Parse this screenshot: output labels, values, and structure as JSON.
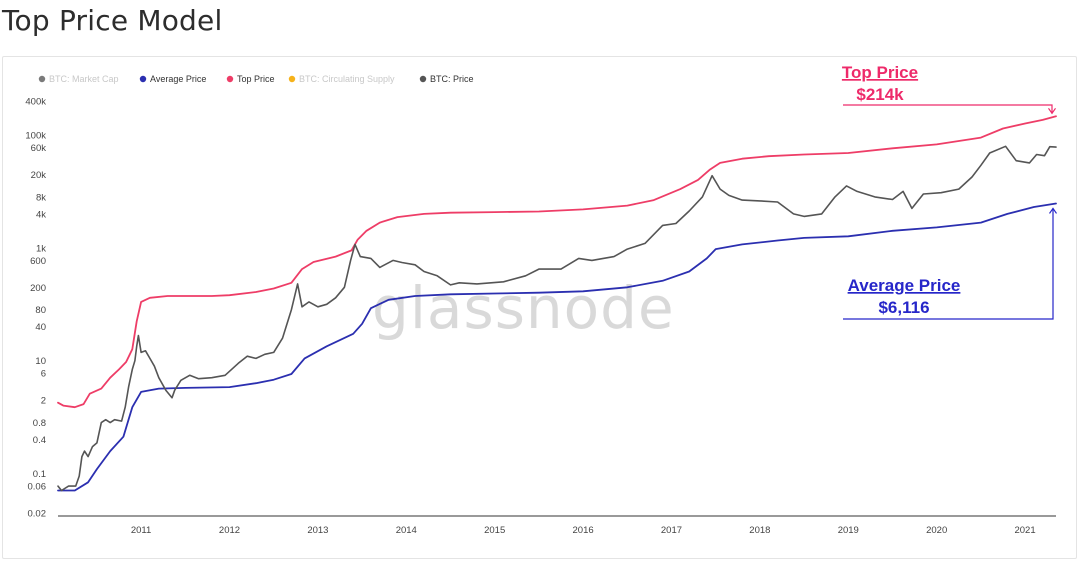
{
  "page": {
    "title": "Top Price Model"
  },
  "chart_data": {
    "type": "line",
    "title": "Top Price Model",
    "xlabel": "",
    "ylabel": "",
    "y_scale": "log",
    "ylim": [
      0.02,
      400000
    ],
    "xlim": [
      2010.56,
      2021.85
    ],
    "grid": false,
    "legend_position": "top-left",
    "watermark": "glassnode",
    "y_ticks": [
      {
        "value": 400000,
        "label": "400k"
      },
      {
        "value": 100000,
        "label": "100k"
      },
      {
        "value": 60000,
        "label": "60k"
      },
      {
        "value": 20000,
        "label": "20k"
      },
      {
        "value": 8000,
        "label": "8k"
      },
      {
        "value": 4000,
        "label": "4k"
      },
      {
        "value": 1000,
        "label": "1k"
      },
      {
        "value": 600,
        "label": "600"
      },
      {
        "value": 200,
        "label": "200"
      },
      {
        "value": 80,
        "label": "80"
      },
      {
        "value": 40,
        "label": "40"
      },
      {
        "value": 10,
        "label": "10"
      },
      {
        "value": 6,
        "label": "6"
      },
      {
        "value": 2,
        "label": "2"
      },
      {
        "value": 0.8,
        "label": "0.8"
      },
      {
        "value": 0.4,
        "label": "0.4"
      },
      {
        "value": 0.1,
        "label": "0.1"
      },
      {
        "value": 0.06,
        "label": "0.06"
      },
      {
        "value": 0.02,
        "label": "0.02"
      }
    ],
    "x_ticks": [
      {
        "value": 2011,
        "label": "2011"
      },
      {
        "value": 2012,
        "label": "2012"
      },
      {
        "value": 2013,
        "label": "2013"
      },
      {
        "value": 2014,
        "label": "2014"
      },
      {
        "value": 2015,
        "label": "2015"
      },
      {
        "value": 2016,
        "label": "2016"
      },
      {
        "value": 2017,
        "label": "2017"
      },
      {
        "value": 2018,
        "label": "2018"
      },
      {
        "value": 2019,
        "label": "2019"
      },
      {
        "value": 2020,
        "label": "2020"
      },
      {
        "value": 2021,
        "label": "2021"
      }
    ],
    "legend": [
      {
        "name": "BTC: Market Cap",
        "color": "#7a7a7a",
        "text_color": "#c8c8c8",
        "active": false
      },
      {
        "name": "Average Price",
        "color": "#2b2fb0",
        "text_color": "#333333",
        "active": true
      },
      {
        "name": "Top Price",
        "color": "#ee3d67",
        "text_color": "#333333",
        "active": true
      },
      {
        "name": "BTC: Circulating Supply",
        "color": "#f6b21a",
        "text_color": "#c8c8c8",
        "active": false
      },
      {
        "name": "BTC: Price",
        "color": "#555555",
        "text_color": "#333333",
        "active": true
      }
    ],
    "series": [
      {
        "name": "Top Price",
        "color": "#ee3d67",
        "points": [
          [
            2010.56,
            1.8
          ],
          [
            2010.62,
            1.6
          ],
          [
            2010.75,
            1.5
          ],
          [
            2010.85,
            1.7
          ],
          [
            2010.92,
            2.6
          ],
          [
            2011.05,
            3.2
          ],
          [
            2011.15,
            5.0
          ],
          [
            2011.25,
            7.0
          ],
          [
            2011.33,
            9.5
          ],
          [
            2011.4,
            16
          ],
          [
            2011.45,
            50
          ],
          [
            2011.5,
            110
          ],
          [
            2011.6,
            130
          ],
          [
            2011.8,
            140
          ],
          [
            2012.0,
            140
          ],
          [
            2012.3,
            140
          ],
          [
            2012.5,
            145
          ],
          [
            2012.8,
            165
          ],
          [
            2013.0,
            190
          ],
          [
            2013.2,
            240
          ],
          [
            2013.32,
            420
          ],
          [
            2013.45,
            560
          ],
          [
            2013.7,
            700
          ],
          [
            2013.88,
            900
          ],
          [
            2013.95,
            1400
          ],
          [
            2014.05,
            2000
          ],
          [
            2014.2,
            2800
          ],
          [
            2014.4,
            3500
          ],
          [
            2014.7,
            4000
          ],
          [
            2015.0,
            4200
          ],
          [
            2015.5,
            4300
          ],
          [
            2016.0,
            4400
          ],
          [
            2016.5,
            4800
          ],
          [
            2017.0,
            5600
          ],
          [
            2017.3,
            7000
          ],
          [
            2017.6,
            11000
          ],
          [
            2017.8,
            16000
          ],
          [
            2017.93,
            24000
          ],
          [
            2018.05,
            32000
          ],
          [
            2018.3,
            38000
          ],
          [
            2018.6,
            42000
          ],
          [
            2019.0,
            45000
          ],
          [
            2019.5,
            48000
          ],
          [
            2020.0,
            58000
          ],
          [
            2020.5,
            68000
          ],
          [
            2021.0,
            90000
          ],
          [
            2021.25,
            130000
          ],
          [
            2021.5,
            160000
          ],
          [
            2021.7,
            185000
          ],
          [
            2021.85,
            214000
          ]
        ]
      },
      {
        "name": "Average Price",
        "color": "#2b2fb0",
        "points": [
          [
            2010.56,
            0.05
          ],
          [
            2010.75,
            0.05
          ],
          [
            2010.9,
            0.07
          ],
          [
            2011.0,
            0.12
          ],
          [
            2011.15,
            0.25
          ],
          [
            2011.3,
            0.45
          ],
          [
            2011.4,
            1.5
          ],
          [
            2011.5,
            2.8
          ],
          [
            2011.7,
            3.2
          ],
          [
            2012.0,
            3.3
          ],
          [
            2012.5,
            3.4
          ],
          [
            2012.8,
            4.0
          ],
          [
            2013.0,
            4.6
          ],
          [
            2013.2,
            5.8
          ],
          [
            2013.35,
            11
          ],
          [
            2013.6,
            18
          ],
          [
            2013.9,
            30
          ],
          [
            2014.0,
            45
          ],
          [
            2014.1,
            85
          ],
          [
            2014.3,
            120
          ],
          [
            2014.6,
            140
          ],
          [
            2015.0,
            150
          ],
          [
            2015.5,
            155
          ],
          [
            2016.0,
            160
          ],
          [
            2016.5,
            170
          ],
          [
            2017.0,
            200
          ],
          [
            2017.4,
            260
          ],
          [
            2017.7,
            380
          ],
          [
            2017.9,
            650
          ],
          [
            2018.0,
            950
          ],
          [
            2018.3,
            1150
          ],
          [
            2018.7,
            1350
          ],
          [
            2019.0,
            1500
          ],
          [
            2019.5,
            1600
          ],
          [
            2020.0,
            2000
          ],
          [
            2020.5,
            2300
          ],
          [
            2021.0,
            2800
          ],
          [
            2021.3,
            4000
          ],
          [
            2021.6,
            5300
          ],
          [
            2021.85,
            6116
          ]
        ]
      },
      {
        "name": "BTC: Price",
        "color": "#555555",
        "points": [
          [
            2010.56,
            0.06
          ],
          [
            2010.6,
            0.05
          ],
          [
            2010.68,
            0.06
          ],
          [
            2010.76,
            0.06
          ],
          [
            2010.8,
            0.09
          ],
          [
            2010.83,
            0.2
          ],
          [
            2010.86,
            0.25
          ],
          [
            2010.9,
            0.2
          ],
          [
            2010.95,
            0.3
          ],
          [
            2011.0,
            0.35
          ],
          [
            2011.05,
            0.8
          ],
          [
            2011.1,
            0.9
          ],
          [
            2011.15,
            0.8
          ],
          [
            2011.2,
            0.9
          ],
          [
            2011.28,
            0.85
          ],
          [
            2011.32,
            1.5
          ],
          [
            2011.36,
            3.5
          ],
          [
            2011.4,
            7
          ],
          [
            2011.43,
            10
          ],
          [
            2011.45,
            18
          ],
          [
            2011.47,
            28
          ],
          [
            2011.5,
            14
          ],
          [
            2011.55,
            15
          ],
          [
            2011.6,
            11
          ],
          [
            2011.65,
            8
          ],
          [
            2011.7,
            5
          ],
          [
            2011.78,
            3
          ],
          [
            2011.85,
            2.2
          ],
          [
            2011.88,
            3
          ],
          [
            2011.95,
            4.5
          ],
          [
            2012.05,
            5.5
          ],
          [
            2012.15,
            4.8
          ],
          [
            2012.3,
            5
          ],
          [
            2012.45,
            5.5
          ],
          [
            2012.6,
            9
          ],
          [
            2012.7,
            12
          ],
          [
            2012.8,
            11
          ],
          [
            2012.9,
            13
          ],
          [
            2013.0,
            14
          ],
          [
            2013.1,
            25
          ],
          [
            2013.2,
            80
          ],
          [
            2013.27,
            230
          ],
          [
            2013.32,
            90
          ],
          [
            2013.4,
            110
          ],
          [
            2013.5,
            90
          ],
          [
            2013.6,
            100
          ],
          [
            2013.7,
            130
          ],
          [
            2013.8,
            200
          ],
          [
            2013.87,
            600
          ],
          [
            2013.92,
            1150
          ],
          [
            2013.98,
            700
          ],
          [
            2014.1,
            650
          ],
          [
            2014.2,
            450
          ],
          [
            2014.35,
            600
          ],
          [
            2014.45,
            550
          ],
          [
            2014.6,
            500
          ],
          [
            2014.7,
            380
          ],
          [
            2014.85,
            320
          ],
          [
            2015.0,
            220
          ],
          [
            2015.1,
            240
          ],
          [
            2015.3,
            230
          ],
          [
            2015.6,
            250
          ],
          [
            2015.85,
            320
          ],
          [
            2016.0,
            420
          ],
          [
            2016.25,
            420
          ],
          [
            2016.45,
            650
          ],
          [
            2016.6,
            600
          ],
          [
            2016.85,
            700
          ],
          [
            2017.0,
            950
          ],
          [
            2017.2,
            1200
          ],
          [
            2017.4,
            2500
          ],
          [
            2017.55,
            2700
          ],
          [
            2017.7,
            4500
          ],
          [
            2017.85,
            8000
          ],
          [
            2017.96,
            19000
          ],
          [
            2018.05,
            11000
          ],
          [
            2018.15,
            8500
          ],
          [
            2018.3,
            7000
          ],
          [
            2018.5,
            6800
          ],
          [
            2018.7,
            6500
          ],
          [
            2018.88,
            4000
          ],
          [
            2019.0,
            3600
          ],
          [
            2019.2,
            4000
          ],
          [
            2019.35,
            8000
          ],
          [
            2019.48,
            12500
          ],
          [
            2019.6,
            10000
          ],
          [
            2019.8,
            8000
          ],
          [
            2020.0,
            7200
          ],
          [
            2020.12,
            10000
          ],
          [
            2020.22,
            5000
          ],
          [
            2020.35,
            9000
          ],
          [
            2020.55,
            9500
          ],
          [
            2020.75,
            11000
          ],
          [
            2020.9,
            18000
          ],
          [
            2021.0,
            29000
          ],
          [
            2021.1,
            48000
          ],
          [
            2021.28,
            63000
          ],
          [
            2021.4,
            35000
          ],
          [
            2021.55,
            32000
          ],
          [
            2021.63,
            45000
          ],
          [
            2021.72,
            43000
          ],
          [
            2021.78,
            62000
          ],
          [
            2021.85,
            61000
          ]
        ]
      }
    ],
    "annotations": [
      {
        "label": "Top Price",
        "value_label": "$214k",
        "color": "#ee2a6a",
        "points_to": "Top Price"
      },
      {
        "label": "Average Price",
        "value_label": "$6,116",
        "color": "#2626c9",
        "points_to": "Average Price"
      }
    ]
  }
}
